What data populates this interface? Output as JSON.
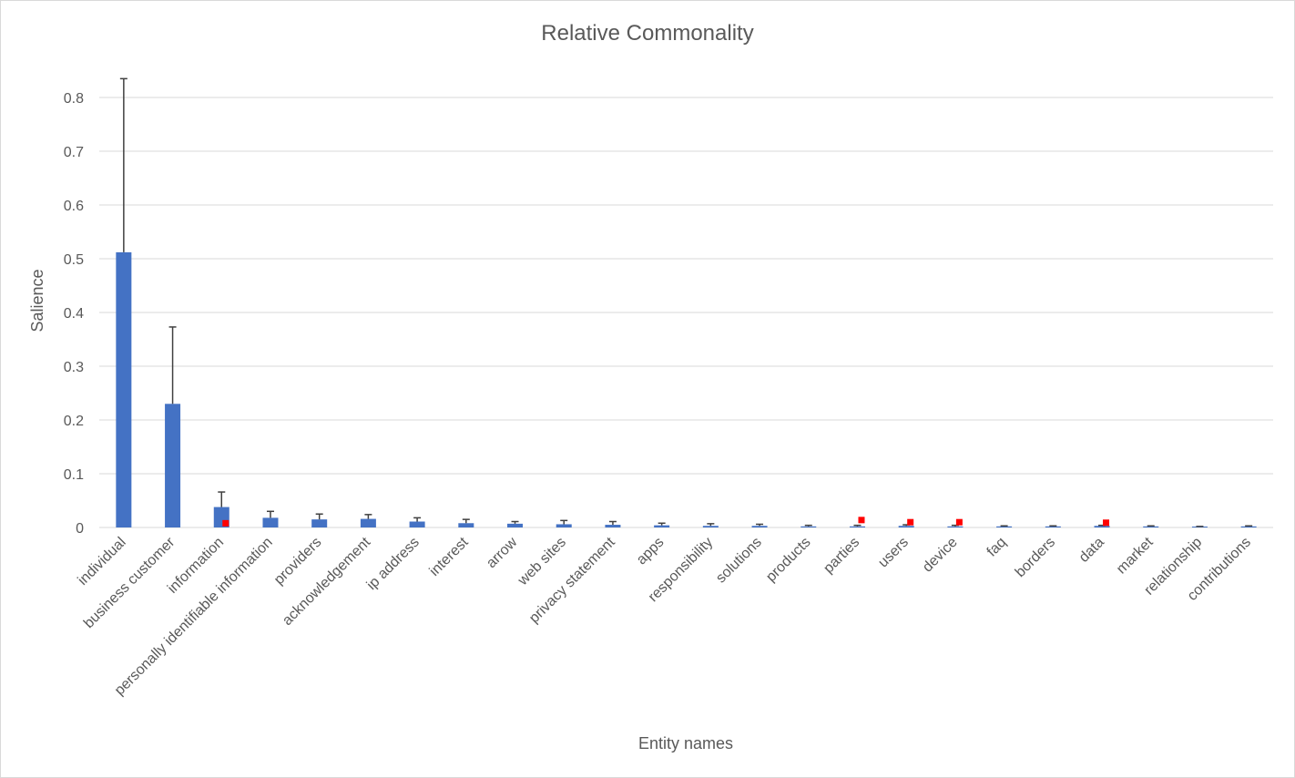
{
  "chart_data": {
    "type": "bar",
    "title": "Relative Commonality",
    "xlabel": "Entity names",
    "ylabel": "Salience",
    "ylim": [
      0,
      0.85
    ],
    "yticks": [
      "0",
      "0.1",
      "0.2",
      "0.3",
      "0.4",
      "0.5",
      "0.6",
      "0.7",
      "0.8"
    ],
    "grid": true,
    "bar_color": "#4472c4",
    "marker_color": "#ff0000",
    "errorbar_color": "#404040",
    "categories": [
      "individual",
      "business customer",
      "information",
      "personally identifiable information",
      "providers",
      "acknowledgement",
      "ip address",
      "interest",
      "arrow",
      "web sites",
      "privacy statement",
      "apps",
      "responsibility",
      "solutions",
      "products",
      "parties",
      "users",
      "device",
      "faq",
      "borders",
      "data",
      "market",
      "relationship",
      "contributions"
    ],
    "values": [
      0.512,
      0.23,
      0.038,
      0.018,
      0.015,
      0.016,
      0.011,
      0.008,
      0.007,
      0.006,
      0.005,
      0.004,
      0.003,
      0.003,
      0.002,
      0.002,
      0.003,
      0.002,
      0.002,
      0.002,
      0.003,
      0.002,
      0.001,
      0.002
    ],
    "error_upper": [
      0.835,
      0.373,
      0.066,
      0.03,
      0.025,
      0.024,
      0.018,
      0.015,
      0.011,
      0.013,
      0.011,
      0.008,
      0.007,
      0.006,
      0.004,
      0.004,
      0.005,
      0.004,
      0.003,
      0.003,
      0.004,
      0.003,
      0.002,
      0.003
    ],
    "markers": [
      null,
      null,
      0.007,
      null,
      null,
      null,
      null,
      null,
      null,
      null,
      null,
      null,
      null,
      null,
      null,
      0.013,
      0.009,
      0.009,
      null,
      null,
      0.008,
      null,
      null,
      null
    ]
  }
}
